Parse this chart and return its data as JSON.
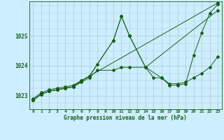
{
  "title": "Graphe pression niveau de la mer (hPa)",
  "background_color": "#cceeff",
  "grid_color": "#aacccc",
  "line_color": "#1a5c1a",
  "xlim": [
    -0.5,
    23.5
  ],
  "ylim": [
    1022.55,
    1026.15
  ],
  "ytick_values": [
    1023,
    1024,
    1025
  ],
  "xtick_labels": [
    "0",
    "1",
    "2",
    "3",
    "4",
    "5",
    "6",
    "7",
    "8",
    "9",
    "10",
    "11",
    "12",
    "13",
    "14",
    "15",
    "16",
    "17",
    "18",
    "19",
    "20",
    "21",
    "22",
    "23"
  ],
  "series": [
    {
      "x": [
        0,
        1,
        2,
        3,
        4,
        5,
        23
      ],
      "y": [
        1022.9,
        1023.1,
        1023.2,
        1023.25,
        1023.3,
        1023.35,
        1026.1
      ]
    },
    {
      "x": [
        0,
        1,
        2,
        3,
        4,
        5,
        6,
        7,
        8,
        10,
        11,
        12,
        14,
        23
      ],
      "y": [
        1022.85,
        1023.05,
        1023.15,
        1023.2,
        1023.25,
        1023.3,
        1023.5,
        1023.65,
        1024.05,
        1024.85,
        1025.65,
        1025.0,
        1023.95,
        1025.85
      ]
    },
    {
      "x": [
        0,
        1,
        2,
        3,
        4,
        5,
        6,
        7,
        8,
        10,
        11,
        12,
        14,
        15,
        16,
        17,
        18,
        19,
        20,
        21,
        22,
        23
      ],
      "y": [
        1022.85,
        1023.05,
        1023.15,
        1023.2,
        1023.25,
        1023.3,
        1023.45,
        1023.6,
        1023.85,
        1023.85,
        1023.95,
        1023.95,
        1023.95,
        1023.6,
        1023.6,
        1023.4,
        1023.4,
        1023.45,
        1023.6,
        1023.75,
        1023.95,
        1024.3
      ]
    },
    {
      "x": [
        0,
        1,
        2,
        3,
        4,
        5,
        6,
        7,
        10,
        11,
        12,
        14,
        16,
        17,
        18,
        19,
        20,
        21,
        22,
        23
      ],
      "y": [
        1022.85,
        1023.05,
        1023.15,
        1023.2,
        1023.25,
        1023.3,
        1023.5,
        1023.65,
        1024.85,
        1025.65,
        1025.0,
        1023.95,
        1023.6,
        1023.35,
        1023.35,
        1023.4,
        1024.35,
        1025.1,
        1025.75,
        1026.05
      ]
    }
  ]
}
